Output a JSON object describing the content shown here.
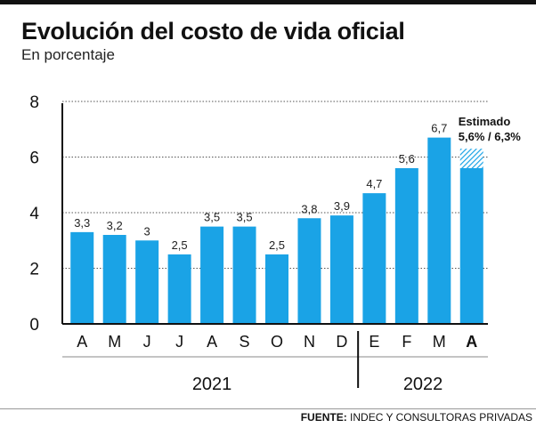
{
  "title": "Evolución del costo de vida oficial",
  "subtitle": "En porcentaje",
  "source_label": "FUENTE:",
  "source_text": "INDEC Y CONSULTORAS PRIVADAS",
  "colors": {
    "bar": "#1aa3e6",
    "estimate_hatch": "#1aa3e6",
    "axis": "#111111",
    "grid": "#555555"
  },
  "chart_data": {
    "type": "bar",
    "categories": [
      "A",
      "M",
      "J",
      "J",
      "A",
      "S",
      "O",
      "N",
      "D",
      "E",
      "F",
      "M",
      "A"
    ],
    "values": [
      3.3,
      3.2,
      3,
      2.5,
      3.5,
      3.5,
      2.5,
      3.8,
      3.9,
      4.7,
      5.6,
      6.7,
      5.6
    ],
    "value_labels": [
      "3,3",
      "3,2",
      "3",
      "2,5",
      "3,5",
      "3,5",
      "2,5",
      "3,8",
      "3,9",
      "4,7",
      "5,6",
      "6,7",
      ""
    ],
    "estimate": {
      "index": 12,
      "low": 5.6,
      "high": 6.3,
      "label": "Estimado",
      "range_label": "5,6% / 6,3%"
    },
    "ylim": [
      0,
      8
    ],
    "yticks": [
      0,
      2,
      4,
      6,
      8
    ],
    "ytick_labels": [
      "0",
      "2",
      "4",
      "6",
      "8"
    ],
    "grid": true,
    "year_groups": [
      {
        "label": "2021",
        "start": 0,
        "end": 8
      },
      {
        "label": "2022",
        "start": 9,
        "end": 12
      }
    ],
    "bold_category_index": 12
  }
}
